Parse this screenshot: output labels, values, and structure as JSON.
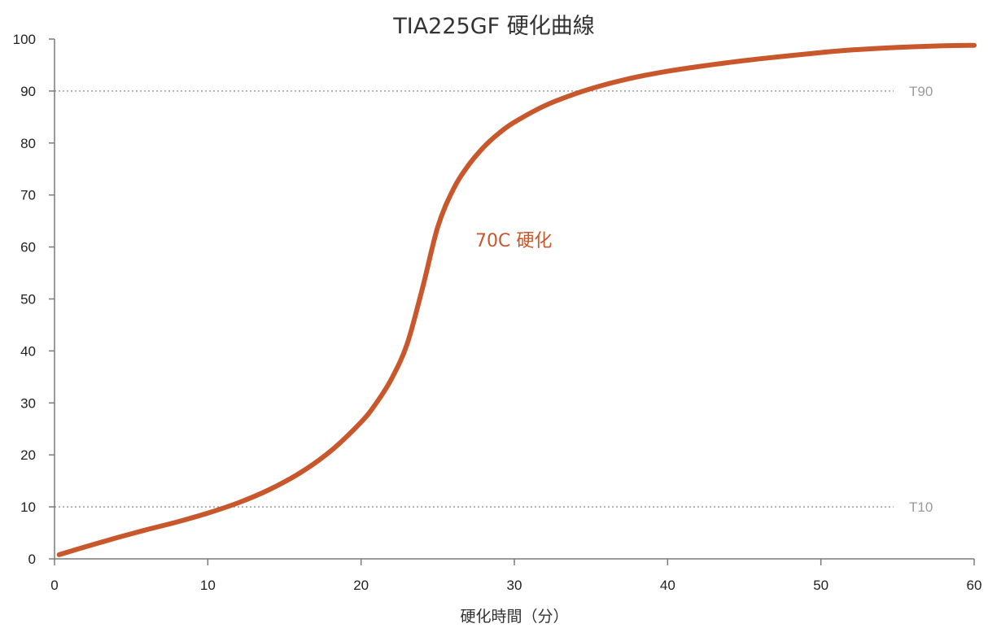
{
  "chart_data": {
    "type": "line",
    "title": "TIA225GF 硬化曲線",
    "xlabel": "硬化時間（分）",
    "ylabel": "",
    "xlim": [
      0,
      60
    ],
    "ylim": [
      0,
      100
    ],
    "x_ticks": [
      0,
      10,
      20,
      30,
      40,
      50,
      60
    ],
    "y_ticks": [
      0,
      10,
      20,
      30,
      40,
      50,
      60,
      70,
      80,
      90,
      100
    ],
    "grid": false,
    "series": [
      {
        "name": "70C 硬化",
        "color": "#c8572c",
        "x": [
          0.3,
          2,
          4,
          6,
          8,
          10,
          12,
          14,
          16,
          18,
          20,
          21,
          22,
          23,
          24,
          25,
          26,
          27,
          28,
          29,
          30,
          32,
          34,
          36,
          38,
          40,
          42,
          44,
          46,
          48,
          50,
          52,
          55,
          58,
          60
        ],
        "y": [
          0.8,
          2.3,
          4.0,
          5.6,
          7.1,
          8.8,
          10.8,
          13.3,
          16.5,
          20.7,
          26.3,
          30.0,
          34.7,
          41.3,
          52.0,
          63.8,
          71.0,
          75.7,
          79.2,
          81.9,
          84.0,
          87.2,
          89.5,
          91.3,
          92.7,
          93.8,
          94.7,
          95.5,
          96.2,
          96.8,
          97.4,
          97.9,
          98.4,
          98.7,
          98.8
        ]
      }
    ],
    "reference_lines": [
      {
        "label": "T90",
        "y": 90
      },
      {
        "label": "T10",
        "y": 10
      }
    ]
  }
}
